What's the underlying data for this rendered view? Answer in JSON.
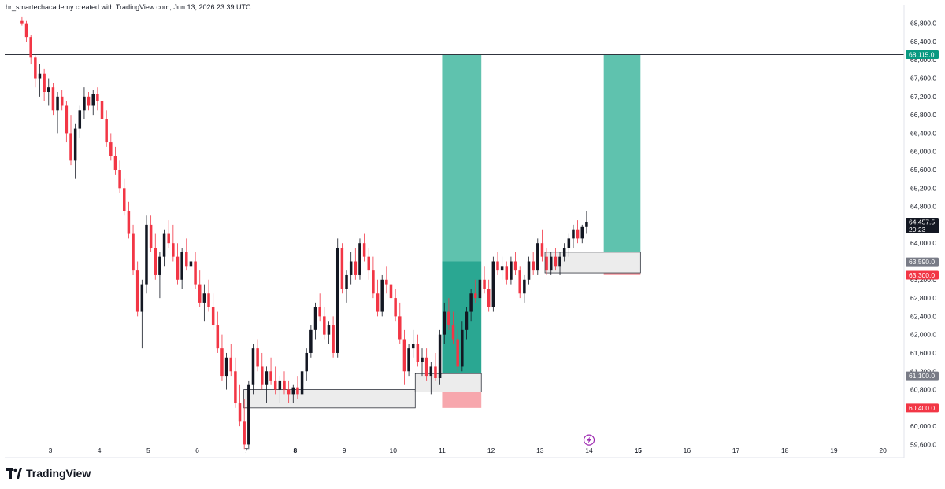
{
  "header": {
    "attribution": "hr_smartechacademy created with TradingView.com, Jun 13, 2026 23:39 UTC"
  },
  "brand": {
    "name": "TradingView"
  },
  "colors": {
    "up": "#131722",
    "down": "#f23645",
    "tp_zone": "#5fc2ae",
    "tp_zone_dark": "#2aa792",
    "sl_zone": "#f7a7ad",
    "grey_zone": "#ececec",
    "level_line": "#131722",
    "label_green": "#089981",
    "label_grey": "#787b86",
    "label_red": "#f23645",
    "label_black": "#131722"
  },
  "chart_data": {
    "type": "candlestick",
    "title": "",
    "x": {
      "tick_labels": [
        "3",
        "4",
        "5",
        "6",
        "7",
        "8",
        "9",
        "10",
        "11",
        "12",
        "13",
        "14",
        "15",
        "16",
        "17",
        "18",
        "19",
        "20"
      ],
      "range": [
        2.1,
        20.4
      ]
    },
    "y": {
      "range": [
        59350,
        69000
      ],
      "tick_labels": [
        "68,800.0",
        "68,400.0",
        "68,000.0",
        "67,600.0",
        "67,200.0",
        "66,800.0",
        "66,400.0",
        "66,000.0",
        "65,600.0",
        "65,200.0",
        "64,800.0",
        "64,400.0",
        "64,000.0",
        "63,600.0",
        "63,200.0",
        "62,800.0",
        "62,400.0",
        "62,000.0",
        "61,600.0",
        "61,200.0",
        "60,800.0",
        "60,400.0",
        "60,000.0",
        "59,600.0"
      ]
    },
    "candles_ohlc": [
      [
        68850,
        68950,
        68750,
        68800
      ],
      [
        68800,
        68850,
        68400,
        68500
      ],
      [
        68500,
        68550,
        67900,
        68050
      ],
      [
        68050,
        68100,
        67400,
        67600
      ],
      [
        67600,
        67900,
        67200,
        67700
      ],
      [
        67700,
        67800,
        67100,
        67300
      ],
      [
        67300,
        67600,
        67000,
        67400
      ],
      [
        67400,
        67500,
        66800,
        66900
      ],
      [
        66900,
        67300,
        66400,
        67200
      ],
      [
        67200,
        67350,
        66900,
        67000
      ],
      [
        67000,
        67100,
        66200,
        66400
      ],
      [
        66400,
        66800,
        65700,
        65800
      ],
      [
        65800,
        66600,
        65400,
        66500
      ],
      [
        66500,
        67000,
        66300,
        66900
      ],
      [
        66900,
        67400,
        66700,
        67200
      ],
      [
        67200,
        67300,
        66900,
        67000
      ],
      [
        67000,
        67350,
        66800,
        67250
      ],
      [
        67250,
        67400,
        66900,
        67100
      ],
      [
        67100,
        67250,
        66600,
        66700
      ],
      [
        66700,
        66900,
        66100,
        66200
      ],
      [
        66200,
        66400,
        65800,
        65900
      ],
      [
        65900,
        66100,
        65500,
        65600
      ],
      [
        65600,
        65800,
        65100,
        65200
      ],
      [
        65200,
        65400,
        64600,
        64700
      ],
      [
        64700,
        64900,
        64100,
        64200
      ],
      [
        64200,
        64400,
        63300,
        63400
      ],
      [
        63400,
        63600,
        62400,
        62500
      ],
      [
        62500,
        63200,
        61700,
        63100
      ],
      [
        63100,
        64600,
        62900,
        64400
      ],
      [
        64400,
        64600,
        63800,
        63900
      ],
      [
        63900,
        64200,
        63200,
        63300
      ],
      [
        63300,
        63800,
        62800,
        63700
      ],
      [
        63700,
        64300,
        63500,
        64200
      ],
      [
        64200,
        64500,
        63900,
        64000
      ],
      [
        64000,
        64400,
        63600,
        63700
      ],
      [
        63700,
        64000,
        63100,
        63200
      ],
      [
        63200,
        63900,
        63000,
        63800
      ],
      [
        63800,
        64100,
        63400,
        63500
      ],
      [
        63500,
        63900,
        63100,
        63600
      ],
      [
        63600,
        63800,
        63000,
        63100
      ],
      [
        63100,
        63400,
        62600,
        62700
      ],
      [
        62700,
        63100,
        62300,
        62900
      ],
      [
        62900,
        63200,
        62500,
        62600
      ],
      [
        62600,
        62900,
        62100,
        62200
      ],
      [
        62200,
        62500,
        61600,
        61700
      ],
      [
        61700,
        62000,
        61000,
        61100
      ],
      [
        61100,
        61600,
        60800,
        61500
      ],
      [
        61500,
        61800,
        61100,
        61200
      ],
      [
        61200,
        61500,
        60400,
        60500
      ],
      [
        60500,
        60900,
        60000,
        60100
      ],
      [
        60100,
        60600,
        59500,
        59600
      ],
      [
        59600,
        61000,
        59500,
        60900
      ],
      [
        60900,
        61800,
        60700,
        61700
      ],
      [
        61700,
        61900,
        61200,
        61300
      ],
      [
        61300,
        61600,
        60800,
        60900
      ],
      [
        60900,
        61300,
        60500,
        61200
      ],
      [
        61200,
        61500,
        60900,
        61000
      ],
      [
        61000,
        61300,
        60700,
        60800
      ],
      [
        60800,
        61100,
        60500,
        61000
      ],
      [
        61000,
        61200,
        60700,
        60800
      ],
      [
        60800,
        61000,
        60500,
        60700
      ],
      [
        60700,
        60900,
        60500,
        60850
      ],
      [
        60850,
        61100,
        60600,
        60700
      ],
      [
        60700,
        61300,
        60600,
        61200
      ],
      [
        61200,
        61700,
        61000,
        61600
      ],
      [
        61600,
        62200,
        61500,
        62100
      ],
      [
        62100,
        62700,
        61900,
        62600
      ],
      [
        62600,
        62900,
        62300,
        62400
      ],
      [
        62400,
        62600,
        61900,
        62000
      ],
      [
        62000,
        62300,
        61800,
        62200
      ],
      [
        62200,
        62400,
        61500,
        61600
      ],
      [
        61600,
        64100,
        61500,
        63900
      ],
      [
        63900,
        64000,
        62900,
        63000
      ],
      [
        63000,
        63400,
        62700,
        63300
      ],
      [
        63300,
        63800,
        63100,
        63600
      ],
      [
        63600,
        63900,
        63200,
        63300
      ],
      [
        63300,
        64100,
        63200,
        64000
      ],
      [
        64000,
        64200,
        63600,
        63700
      ],
      [
        63700,
        63900,
        63200,
        63400
      ],
      [
        63400,
        63700,
        62800,
        62900
      ],
      [
        62900,
        63200,
        62400,
        62500
      ],
      [
        62500,
        63300,
        62400,
        63200
      ],
      [
        63200,
        63500,
        62900,
        63100
      ],
      [
        63100,
        63300,
        62700,
        62800
      ],
      [
        62800,
        63000,
        62300,
        62400
      ],
      [
        62400,
        62700,
        61800,
        61900
      ],
      [
        61900,
        62100,
        60900,
        61200
      ],
      [
        61200,
        61800,
        61100,
        61700
      ],
      [
        61700,
        62100,
        61500,
        61800
      ],
      [
        61800,
        62000,
        61300,
        61400
      ],
      [
        61400,
        61700,
        61100,
        61500
      ],
      [
        61500,
        61700,
        61000,
        61100
      ],
      [
        61100,
        61400,
        60700,
        61300
      ],
      [
        61300,
        61600,
        61000,
        61050
      ],
      [
        61050,
        62100,
        60900,
        62000
      ],
      [
        62000,
        62700,
        61800,
        62500
      ],
      [
        62500,
        62800,
        62100,
        62200
      ],
      [
        62200,
        62500,
        61800,
        61900
      ],
      [
        61900,
        62100,
        61200,
        61300
      ],
      [
        61300,
        62300,
        61200,
        62100
      ],
      [
        62100,
        62600,
        61900,
        62500
      ],
      [
        62500,
        63000,
        62300,
        62900
      ],
      [
        62900,
        63200,
        62700,
        62800
      ],
      [
        62800,
        63300,
        62600,
        63200
      ],
      [
        63200,
        63500,
        62900,
        63000
      ],
      [
        63000,
        63200,
        62500,
        62600
      ],
      [
        62600,
        63700,
        62500,
        63600
      ],
      [
        63600,
        63800,
        63300,
        63400
      ],
      [
        63400,
        63700,
        63200,
        63500
      ],
      [
        63500,
        63600,
        63100,
        63200
      ],
      [
        63200,
        63700,
        63100,
        63600
      ],
      [
        63600,
        63800,
        63300,
        63400
      ],
      [
        63400,
        63500,
        62800,
        62900
      ],
      [
        62900,
        63300,
        62700,
        63200
      ],
      [
        63200,
        63700,
        63100,
        63600
      ],
      [
        63600,
        63800,
        63300,
        63400
      ],
      [
        63400,
        64100,
        63300,
        64000
      ],
      [
        64000,
        64300,
        63600,
        63700
      ],
      [
        63700,
        63900,
        63300,
        63400
      ],
      [
        63400,
        63800,
        63300,
        63700
      ],
      [
        63700,
        63900,
        63400,
        63500
      ],
      [
        63500,
        63800,
        63300,
        63700
      ],
      [
        63700,
        64000,
        63600,
        63900
      ],
      [
        63900,
        64200,
        63700,
        64100
      ],
      [
        64100,
        64400,
        63900,
        64300
      ],
      [
        64300,
        64500,
        64000,
        64100
      ],
      [
        64100,
        64400,
        64000,
        64350
      ],
      [
        64350,
        64700,
        64200,
        64450
      ]
    ],
    "zones": [
      {
        "kind": "take-profit",
        "x": [
          11.0,
          11.8
        ],
        "y": [
          63600,
          68115
        ]
      },
      {
        "kind": "entry-fill",
        "x": [
          11.0,
          11.8
        ],
        "y": [
          61100,
          63600
        ]
      },
      {
        "kind": "stop-loss",
        "x": [
          11.0,
          11.8
        ],
        "y": [
          60400,
          61100
        ]
      },
      {
        "kind": "take-profit",
        "x": [
          14.3,
          15.05
        ],
        "y": [
          63590,
          68115
        ]
      },
      {
        "kind": "stop-loss",
        "x": [
          14.3,
          15.05
        ],
        "y": [
          63300,
          63590
        ]
      },
      {
        "kind": "demand-box",
        "x": [
          6.95,
          10.45
        ],
        "y": [
          60400,
          60800
        ]
      },
      {
        "kind": "demand-box",
        "x": [
          10.45,
          11.8
        ],
        "y": [
          60750,
          61150
        ]
      },
      {
        "kind": "demand-box",
        "x": [
          13.1,
          15.05
        ],
        "y": [
          63350,
          63800
        ]
      }
    ],
    "levels": [
      {
        "kind": "solid",
        "price": 68115
      },
      {
        "kind": "dotted",
        "price": 64457.5
      }
    ],
    "price_labels": [
      {
        "text": "68,115.0",
        "price": 68115,
        "color": "#089981"
      },
      {
        "text": "64,457.5",
        "subtext": "20:23",
        "price": 64457.5,
        "color": "#131722"
      },
      {
        "text": "63,590.0",
        "price": 63590,
        "color": "#787b86"
      },
      {
        "text": "63,300.0",
        "price": 63300,
        "color": "#f23645"
      },
      {
        "text": "61,100.0",
        "price": 61100,
        "color": "#787b86"
      },
      {
        "text": "60,400.0",
        "price": 60400,
        "color": "#f23645"
      }
    ],
    "annotations": [
      {
        "kind": "lightning-icon",
        "x": 14.0,
        "price": 59700
      }
    ],
    "grid": false,
    "legend": "none"
  }
}
